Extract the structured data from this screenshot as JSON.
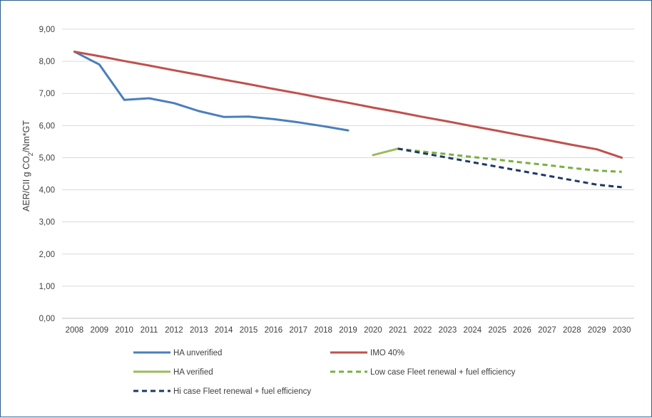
{
  "chart_data": {
    "type": "line",
    "title": "",
    "xlabel": "",
    "ylabel": "AER/CII g CO2/Nm*GT",
    "ylabel_parts": {
      "pre": "AER/CII g CO",
      "sub": "2",
      "post": "/Nm*GT"
    },
    "ylim": [
      0,
      9
    ],
    "yticks": [
      0,
      1,
      2,
      3,
      4,
      5,
      6,
      7,
      8,
      9
    ],
    "ytick_labels": [
      "0,00",
      "1,00",
      "2,00",
      "3,00",
      "4,00",
      "5,00",
      "6,00",
      "7,00",
      "8,00",
      "9,00"
    ],
    "categories": [
      "2008",
      "2009",
      "2010",
      "2011",
      "2012",
      "2013",
      "2014",
      "2015",
      "2016",
      "2017",
      "2018",
      "2019",
      "2020",
      "2021",
      "2022",
      "2023",
      "2024",
      "2025",
      "2026",
      "2027",
      "2028",
      "2029",
      "2030"
    ],
    "grid": "horizontal",
    "legend_position": "bottom",
    "series": [
      {
        "name": "HA unverified",
        "color": "#4a7ebb",
        "dash": "solid",
        "values": [
          8.3,
          7.9,
          6.8,
          6.85,
          6.7,
          6.45,
          6.27,
          6.28,
          6.2,
          6.1,
          5.98,
          5.85,
          null,
          null,
          null,
          null,
          null,
          null,
          null,
          null,
          null,
          null,
          null
        ]
      },
      {
        "name": "IMO 40%",
        "color": "#c0504d",
        "dash": "solid",
        "values": [
          8.3,
          8.16,
          8.01,
          7.87,
          7.72,
          7.58,
          7.43,
          7.29,
          7.14,
          7.0,
          6.85,
          6.71,
          6.56,
          6.42,
          6.27,
          6.13,
          5.98,
          5.84,
          5.69,
          5.55,
          5.4,
          5.26,
          5.0
        ]
      },
      {
        "name": "HA verified",
        "color": "#9bbb59",
        "dash": "solid",
        "values": [
          null,
          null,
          null,
          null,
          null,
          null,
          null,
          null,
          null,
          null,
          null,
          null,
          5.08,
          5.28,
          null,
          null,
          null,
          null,
          null,
          null,
          null,
          null,
          null
        ]
      },
      {
        "name": "Low case Fleet renewal + fuel efficiency",
        "color": "#77b041",
        "dash": "dashed",
        "values": [
          null,
          null,
          null,
          null,
          null,
          null,
          null,
          null,
          null,
          null,
          null,
          null,
          null,
          5.28,
          5.19,
          5.11,
          5.02,
          4.94,
          4.85,
          4.77,
          4.68,
          4.6,
          4.56
        ]
      },
      {
        "name": "Hi case Fleet renewal + fuel efficiency",
        "color": "#1f3864",
        "dash": "dashed",
        "values": [
          null,
          null,
          null,
          null,
          null,
          null,
          null,
          null,
          null,
          null,
          null,
          null,
          null,
          5.28,
          5.14,
          5.0,
          4.86,
          4.72,
          4.58,
          4.44,
          4.3,
          4.16,
          4.08
        ]
      }
    ]
  }
}
